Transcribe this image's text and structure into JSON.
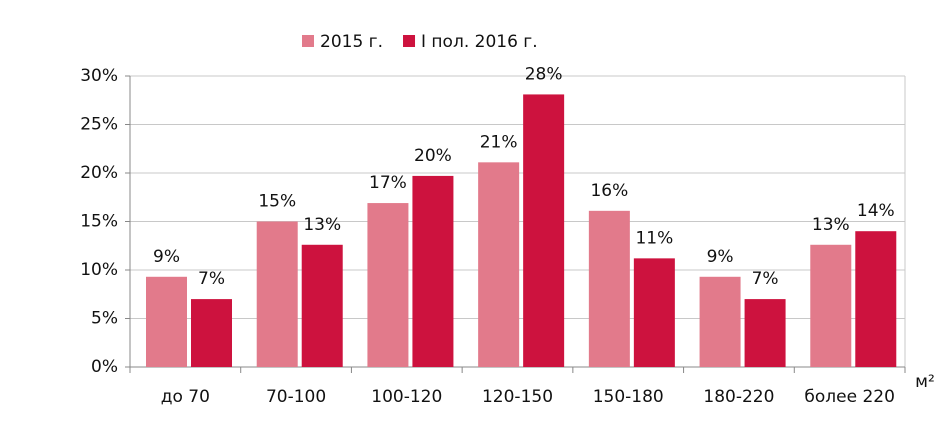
{
  "chart_data": {
    "type": "bar",
    "categories": [
      "до 70",
      "70-100",
      "100-120",
      "120-150",
      "150-180",
      "180-220",
      "более 220"
    ],
    "series": [
      {
        "name": "2015 г.",
        "color": "#e27a8b",
        "values": [
          9.3,
          15,
          16.9,
          21.1,
          16.1,
          9.3,
          12.6
        ],
        "value_labels": [
          "9%",
          "15%",
          "17%",
          "21%",
          "16%",
          "9%",
          "13%"
        ]
      },
      {
        "name": "I пол. 2016 г.",
        "color": "#cd123e",
        "values": [
          7,
          12.6,
          19.7,
          28.1,
          11.2,
          7,
          14
        ],
        "value_labels": [
          "7%",
          "13%",
          "20%",
          "28%",
          "11%",
          "7%",
          "14%"
        ]
      }
    ],
    "ylim": [
      0,
      30
    ],
    "yticks": [
      {
        "value": 0,
        "label": "0%"
      },
      {
        "value": 5,
        "label": "5%"
      },
      {
        "value": 10,
        "label": "10%"
      },
      {
        "value": 15,
        "label": "15%"
      },
      {
        "value": 20,
        "label": "20%"
      },
      {
        "value": 25,
        "label": "25%"
      },
      {
        "value": 30,
        "label": "30%"
      }
    ],
    "x_unit": "м²",
    "grid": true,
    "legend": "top"
  }
}
